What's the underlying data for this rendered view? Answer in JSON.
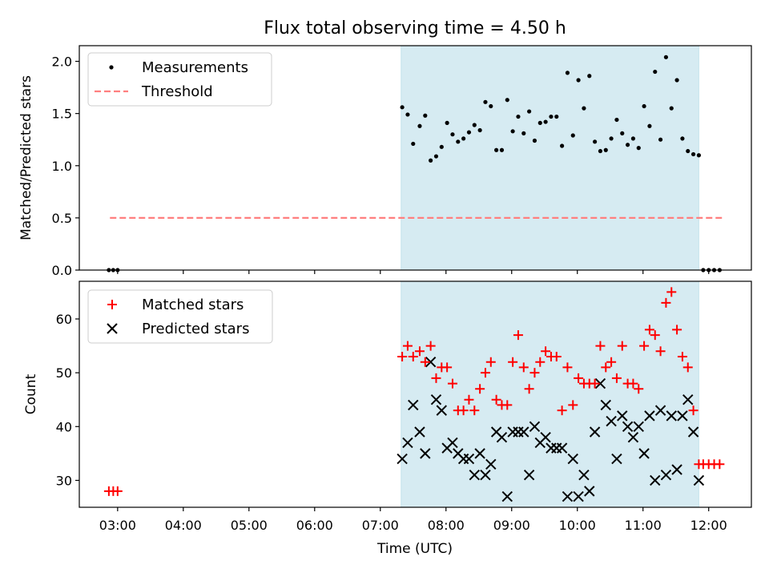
{
  "chart_data": [
    {
      "type": "scatter",
      "title": "Flux total observing time = 4.50 h",
      "ylabel": "Matched/Predicted stars",
      "xlabel": "",
      "ylim": [
        0,
        2.15
      ],
      "yticks": [
        0.0,
        0.5,
        1.0,
        1.5,
        2.0
      ],
      "ytick_labels": [
        "0.0",
        "0.5",
        "1.0",
        "1.5",
        "2.0"
      ],
      "x_range": [
        "02:25",
        "12:39"
      ],
      "shaded_interval": [
        "07:19",
        "11:51"
      ],
      "shade_color": "#add8e6",
      "legend_position": "upper-left",
      "legend": [
        {
          "label": "Measurements",
          "marker": "dot",
          "color": "#000000"
        },
        {
          "label": "Threshold",
          "marker": "dashed-line",
          "color": "#ff7f7f"
        }
      ],
      "threshold": {
        "value": 0.5,
        "x_start": "02:53",
        "x_end": "12:14"
      },
      "series": [
        {
          "name": "Measurements",
          "color": "#000000",
          "points": [
            [
              "02:52",
              0
            ],
            [
              "02:56",
              0
            ],
            [
              "03:00",
              0
            ],
            [
              "07:20",
              1.56
            ],
            [
              "07:25",
              1.49
            ],
            [
              "07:30",
              1.21
            ],
            [
              "07:36",
              1.38
            ],
            [
              "07:41",
              1.48
            ],
            [
              "07:46",
              1.05
            ],
            [
              "07:51",
              1.09
            ],
            [
              "07:56",
              1.18
            ],
            [
              "08:01",
              1.41
            ],
            [
              "08:06",
              1.3
            ],
            [
              "08:11",
              1.23
            ],
            [
              "08:16",
              1.26
            ],
            [
              "08:21",
              1.32
            ],
            [
              "08:26",
              1.39
            ],
            [
              "08:31",
              1.34
            ],
            [
              "08:36",
              1.61
            ],
            [
              "08:41",
              1.57
            ],
            [
              "08:46",
              1.15
            ],
            [
              "08:51",
              1.15
            ],
            [
              "08:56",
              1.63
            ],
            [
              "09:01",
              1.33
            ],
            [
              "09:06",
              1.47
            ],
            [
              "09:11",
              1.31
            ],
            [
              "09:16",
              1.52
            ],
            [
              "09:21",
              1.24
            ],
            [
              "09:26",
              1.41
            ],
            [
              "09:31",
              1.42
            ],
            [
              "09:36",
              1.47
            ],
            [
              "09:41",
              1.47
            ],
            [
              "09:46",
              1.19
            ],
            [
              "09:51",
              1.89
            ],
            [
              "09:56",
              1.29
            ],
            [
              "10:01",
              1.82
            ],
            [
              "10:06",
              1.55
            ],
            [
              "10:11",
              1.86
            ],
            [
              "10:16",
              1.23
            ],
            [
              "10:21",
              1.14
            ],
            [
              "10:26",
              1.15
            ],
            [
              "10:31",
              1.26
            ],
            [
              "10:36",
              1.44
            ],
            [
              "10:41",
              1.31
            ],
            [
              "10:46",
              1.2
            ],
            [
              "10:51",
              1.26
            ],
            [
              "10:56",
              1.17
            ],
            [
              "11:01",
              1.57
            ],
            [
              "11:06",
              1.38
            ],
            [
              "11:11",
              1.9
            ],
            [
              "11:16",
              1.25
            ],
            [
              "11:21",
              2.04
            ],
            [
              "11:26",
              1.55
            ],
            [
              "11:31",
              1.82
            ],
            [
              "11:36",
              1.26
            ],
            [
              "11:41",
              1.14
            ],
            [
              "11:46",
              1.11
            ],
            [
              "11:51",
              1.1
            ],
            [
              "11:55",
              0
            ],
            [
              "12:00",
              0
            ],
            [
              "12:05",
              0
            ],
            [
              "12:10",
              0
            ]
          ]
        }
      ]
    },
    {
      "type": "scatter",
      "xlabel": "Time (UTC)",
      "ylabel": "Count",
      "ylim": [
        25,
        67
      ],
      "yticks": [
        30,
        40,
        50,
        60
      ],
      "ytick_labels": [
        "30",
        "40",
        "50",
        "60"
      ],
      "xticks": [
        "03:00",
        "04:00",
        "05:00",
        "06:00",
        "07:00",
        "08:00",
        "09:00",
        "10:00",
        "11:00",
        "12:00"
      ],
      "x_range": [
        "02:25",
        "12:39"
      ],
      "shaded_interval": [
        "07:19",
        "11:51"
      ],
      "shade_color": "#add8e6",
      "legend_position": "upper-left",
      "legend": [
        {
          "label": "Matched stars",
          "marker": "plus",
          "color": "#ff0000"
        },
        {
          "label": "Predicted stars",
          "marker": "x",
          "color": "#000000"
        }
      ],
      "series": [
        {
          "name": "Matched stars",
          "marker": "plus",
          "color": "#ff0000",
          "points": [
            [
              "02:52",
              28
            ],
            [
              "02:56",
              28
            ],
            [
              "03:00",
              28
            ],
            [
              "07:20",
              53
            ],
            [
              "07:25",
              55
            ],
            [
              "07:30",
              53
            ],
            [
              "07:36",
              54
            ],
            [
              "07:41",
              52
            ],
            [
              "07:46",
              55
            ],
            [
              "07:51",
              49
            ],
            [
              "07:56",
              51
            ],
            [
              "08:01",
              51
            ],
            [
              "08:06",
              48
            ],
            [
              "08:11",
              43
            ],
            [
              "08:16",
              43
            ],
            [
              "08:21",
              45
            ],
            [
              "08:26",
              43
            ],
            [
              "08:31",
              47
            ],
            [
              "08:36",
              50
            ],
            [
              "08:41",
              52
            ],
            [
              "08:46",
              45
            ],
            [
              "08:51",
              44
            ],
            [
              "08:56",
              44
            ],
            [
              "09:01",
              52
            ],
            [
              "09:06",
              57
            ],
            [
              "09:11",
              51
            ],
            [
              "09:16",
              47
            ],
            [
              "09:21",
              50
            ],
            [
              "09:26",
              52
            ],
            [
              "09:31",
              54
            ],
            [
              "09:36",
              53
            ],
            [
              "09:41",
              53
            ],
            [
              "09:46",
              43
            ],
            [
              "09:51",
              51
            ],
            [
              "09:56",
              44
            ],
            [
              "10:01",
              49
            ],
            [
              "10:06",
              48
            ],
            [
              "10:11",
              48
            ],
            [
              "10:16",
              48
            ],
            [
              "10:21",
              55
            ],
            [
              "10:26",
              51
            ],
            [
              "10:31",
              52
            ],
            [
              "10:36",
              49
            ],
            [
              "10:41",
              55
            ],
            [
              "10:46",
              48
            ],
            [
              "10:51",
              48
            ],
            [
              "10:56",
              47
            ],
            [
              "11:01",
              55
            ],
            [
              "11:06",
              58
            ],
            [
              "11:11",
              57
            ],
            [
              "11:16",
              54
            ],
            [
              "11:21",
              63
            ],
            [
              "11:26",
              65
            ],
            [
              "11:31",
              58
            ],
            [
              "11:36",
              53
            ],
            [
              "11:41",
              51
            ],
            [
              "11:46",
              43
            ],
            [
              "11:51",
              33
            ],
            [
              "11:55",
              33
            ],
            [
              "12:00",
              33
            ],
            [
              "12:05",
              33
            ],
            [
              "12:10",
              33
            ]
          ]
        },
        {
          "name": "Predicted stars",
          "marker": "x",
          "color": "#000000",
          "points": [
            [
              "07:20",
              34
            ],
            [
              "07:25",
              37
            ],
            [
              "07:30",
              44
            ],
            [
              "07:36",
              39
            ],
            [
              "07:41",
              35
            ],
            [
              "07:46",
              52
            ],
            [
              "07:51",
              45
            ],
            [
              "07:56",
              43
            ],
            [
              "08:01",
              36
            ],
            [
              "08:06",
              37
            ],
            [
              "08:11",
              35
            ],
            [
              "08:16",
              34
            ],
            [
              "08:21",
              34
            ],
            [
              "08:26",
              31
            ],
            [
              "08:31",
              35
            ],
            [
              "08:36",
              31
            ],
            [
              "08:41",
              33
            ],
            [
              "08:46",
              39
            ],
            [
              "08:51",
              38
            ],
            [
              "08:56",
              27
            ],
            [
              "09:01",
              39
            ],
            [
              "09:06",
              39
            ],
            [
              "09:11",
              39
            ],
            [
              "09:16",
              31
            ],
            [
              "09:21",
              40
            ],
            [
              "09:26",
              37
            ],
            [
              "09:31",
              38
            ],
            [
              "09:36",
              36
            ],
            [
              "09:41",
              36
            ],
            [
              "09:46",
              36
            ],
            [
              "09:51",
              27
            ],
            [
              "09:56",
              34
            ],
            [
              "10:01",
              27
            ],
            [
              "10:06",
              31
            ],
            [
              "10:11",
              28
            ],
            [
              "10:16",
              39
            ],
            [
              "10:21",
              48
            ],
            [
              "10:26",
              44
            ],
            [
              "10:31",
              41
            ],
            [
              "10:36",
              34
            ],
            [
              "10:41",
              42
            ],
            [
              "10:46",
              40
            ],
            [
              "10:51",
              38
            ],
            [
              "10:56",
              40
            ],
            [
              "11:01",
              35
            ],
            [
              "11:06",
              42
            ],
            [
              "11:11",
              30
            ],
            [
              "11:16",
              43
            ],
            [
              "11:21",
              31
            ],
            [
              "11:26",
              42
            ],
            [
              "11:31",
              32
            ],
            [
              "11:36",
              42
            ],
            [
              "11:41",
              45
            ],
            [
              "11:46",
              39
            ],
            [
              "11:51",
              30
            ]
          ]
        }
      ]
    }
  ]
}
